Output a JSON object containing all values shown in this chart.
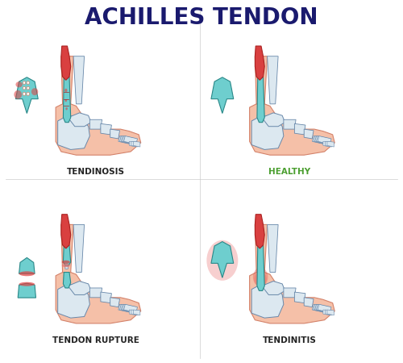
{
  "title": "ACHILLES TENDON",
  "title_fontsize": 20,
  "title_fontweight": "bold",
  "title_color": "#1a1a6e",
  "bg_color": "#ffffff",
  "labels": {
    "tendinosis": "TENDINOSIS",
    "healthy": "HEALTHY",
    "rupture": "TENDON RUPTURE",
    "tendinitis": "TENDINITIS"
  },
  "label_colors": {
    "tendinosis": "#222222",
    "healthy": "#4a9e2f",
    "rupture": "#222222",
    "tendinitis": "#222222"
  },
  "label_fontsize": 7.5,
  "colors": {
    "skin": "#f5c0a8",
    "skin_outline": "#d4826a",
    "skin_light": "#fce8dc",
    "bone": "#dce8f0",
    "bone_outline": "#6888aa",
    "tendon_teal": "#6ecece",
    "tendon_outline": "#2a8888",
    "tendon_dark": "#4aacac",
    "muscle_red": "#d94040",
    "muscle_pink": "#e87070",
    "muscle_outline": "#aa2020",
    "line_dark": "#334466",
    "inflammation_red": "#e04040",
    "white": "#ffffff",
    "grey": "#d0d0e0"
  }
}
